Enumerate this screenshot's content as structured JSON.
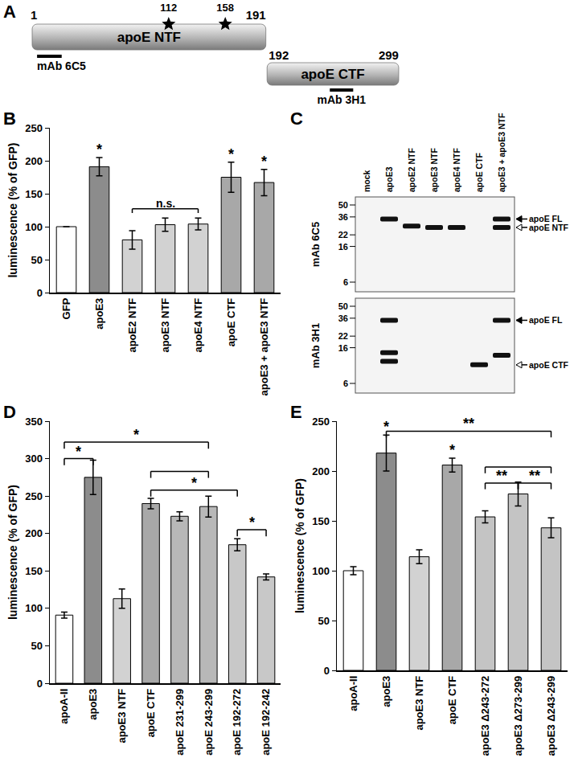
{
  "diagram": {
    "panel": "A",
    "segments": [
      {
        "label": "apoE NTF",
        "start": 1,
        "end": 191
      },
      {
        "label": "apoE CTF",
        "start": 192,
        "end": 299
      }
    ],
    "sites": [
      112,
      158
    ],
    "epitopes": [
      {
        "label": "mAb 6C5",
        "start": 5,
        "end": 25
      },
      {
        "label": "mAb 3H1",
        "start": 243,
        "end": 262
      }
    ]
  },
  "blot": {
    "panel": "C",
    "lanes": [
      "mock",
      "apoE3",
      "apoE2 NTF",
      "apoE3 NTF",
      "apoE4 NTF",
      "apoE CTF",
      "apoE3 + apoE3 NTF"
    ],
    "markers_kda": [
      50,
      36,
      22,
      16,
      6
    ],
    "blots": [
      {
        "antibody": "mAb 6C5",
        "bands": [
          {
            "lane": "apoE3",
            "kda": 34
          },
          {
            "lane": "apoE2 NTF",
            "kda": 28
          },
          {
            "lane": "apoE3 NTF",
            "kda": 27
          },
          {
            "lane": "apoE4 NTF",
            "kda": 27
          },
          {
            "lane": "apoE3 + apoE3 NTF",
            "kda": 34
          },
          {
            "lane": "apoE3 + apoE3 NTF",
            "kda": 27
          }
        ],
        "arrows": [
          {
            "label": "apoE FL",
            "kda": 34
          },
          {
            "label": "apoE NTF",
            "kda": 27
          }
        ]
      },
      {
        "antibody": "mAb 3H1",
        "bands": [
          {
            "lane": "apoE3",
            "kda": 34
          },
          {
            "lane": "apoE3",
            "kda": 14
          },
          {
            "lane": "apoE3",
            "kda": 11
          },
          {
            "lane": "apoE CTF",
            "kda": 10
          },
          {
            "lane": "apoE3 + apoE3 NTF",
            "kda": 34
          },
          {
            "lane": "apoE3 + apoE3 NTF",
            "kda": 13
          }
        ],
        "arrows": [
          {
            "label": "apoE FL",
            "kda": 34
          },
          {
            "label": "apoE CTF",
            "kda": 10
          }
        ]
      }
    ]
  },
  "chart_data": [
    {
      "type": "bar",
      "panel": "B",
      "categories": [
        "GFP",
        "apoE3",
        "apoE2 NTF",
        "apoE3 NTF",
        "apoE4 NTF",
        "apoE CTF",
        "apoE3 + apoE3 NTF"
      ],
      "values": [
        100,
        191,
        80,
        103,
        104,
        175,
        167
      ],
      "errors": [
        0,
        14,
        14,
        10,
        9,
        23,
        20
      ],
      "colors": [
        "#ffffff",
        "#8c8c8c",
        "#d2d2d2",
        "#d2d2d2",
        "#d2d2d2",
        "#a8a8a8",
        "#a8a8a8"
      ],
      "y_label": "luminescence (% of GFP)",
      "ylim": [
        0,
        250
      ],
      "yticks": [
        0,
        50,
        100,
        150,
        200,
        250
      ],
      "significance": [
        {
          "category": "apoE3",
          "text": "*"
        },
        {
          "category": "apoE CTF",
          "text": "*"
        },
        {
          "category": "apoE3 + apoE3 NTF",
          "text": "*"
        }
      ],
      "brackets": [
        {
          "from": "apoE2 NTF",
          "to": "apoE4 NTF",
          "y": 127,
          "text": "n.s."
        }
      ]
    },
    {
      "type": "bar",
      "panel": "D",
      "categories": [
        "apoA-II",
        "apoE3",
        "apoE3 NTF",
        "apoE CTF",
        "apoE 231-299",
        "apoE 243-299",
        "apoE 192-272",
        "apoE 192-242"
      ],
      "values": [
        91,
        275,
        113,
        240,
        223,
        236,
        185,
        142
      ],
      "errors": [
        4,
        23,
        13,
        7,
        6,
        14,
        8,
        4
      ],
      "colors": [
        "#ffffff",
        "#8c8c8c",
        "#d2d2d2",
        "#a8a8a8",
        "#b8b8b8",
        "#b8b8b8",
        "#c8c8c8",
        "#c8c8c8"
      ],
      "y_label": "luminescence (% of GFP)",
      "ylim": [
        0,
        350
      ],
      "yticks": [
        0,
        50,
        100,
        150,
        200,
        250,
        300,
        350
      ],
      "significance": [],
      "brackets": [
        {
          "from": "apoA-II",
          "to": "apoE3",
          "y": 300,
          "text": "*"
        },
        {
          "from": "apoA-II",
          "to": "apoE 243-299",
          "y": 322,
          "text": "*"
        },
        {
          "from": "apoE CTF",
          "to": "apoE 243-299",
          "y": 283
        },
        {
          "from": "apoE CTF",
          "to": "apoE 192-272",
          "y": 258,
          "text": "*"
        },
        {
          "from": "apoE 192-272",
          "to": "apoE 192-242",
          "y": 205,
          "text": "*"
        }
      ]
    },
    {
      "type": "bar",
      "panel": "E",
      "categories": [
        "apoA-II",
        "apoE3",
        "apoE3 NTF",
        "apoE CTF",
        "apoE3 Δ243-272",
        "apoE3 Δ273-299",
        "apoE3 Δ243-299"
      ],
      "values": [
        100,
        218,
        114,
        206,
        154,
        177,
        143
      ],
      "errors": [
        4,
        18,
        7,
        7,
        6,
        12,
        10
      ],
      "colors": [
        "#ffffff",
        "#8c8c8c",
        "#d2d2d2",
        "#a8a8a8",
        "#c4c4c4",
        "#c4c4c4",
        "#c4c4c4"
      ],
      "y_label": "luminescence (% of GFP)",
      "ylim": [
        0,
        250
      ],
      "yticks": [
        0,
        50,
        100,
        150,
        200,
        250
      ],
      "significance": [
        {
          "category": "apoE3",
          "text": "*"
        },
        {
          "category": "apoE CTF",
          "text": "*"
        }
      ],
      "brackets": [
        {
          "from": "apoE3",
          "to": "apoE3 Δ243-299",
          "y": 240,
          "text": "**"
        },
        {
          "from": "apoE3 Δ243-272",
          "to": "apoE3 Δ243-299",
          "y": 204
        },
        {
          "from": "apoE3 Δ243-272",
          "to": "apoE3 Δ273-299",
          "y": 188,
          "text": "**"
        },
        {
          "from": "apoE3 Δ273-299",
          "to": "apoE3 Δ243-299",
          "y": 188,
          "text": "**"
        }
      ]
    }
  ]
}
